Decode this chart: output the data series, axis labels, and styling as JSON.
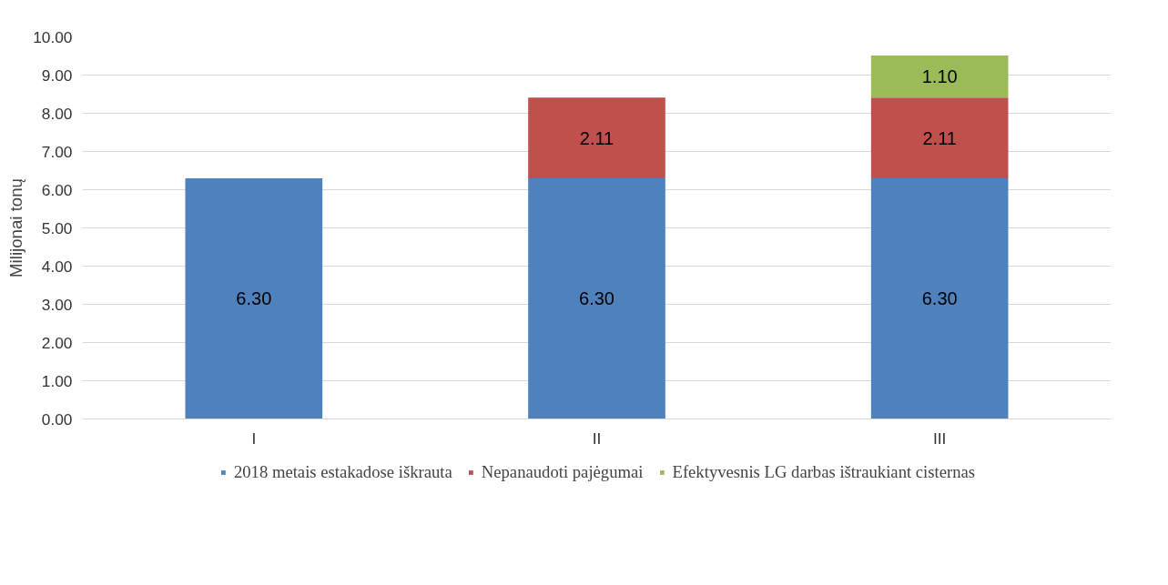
{
  "chart_data": {
    "type": "bar",
    "stacked": true,
    "ylabel": "Milijonai tonų",
    "categories": [
      "I",
      "II",
      "III"
    ],
    "series": [
      {
        "name": "2018 metais estakadose iškrauta",
        "color": "#4f81bd",
        "values": [
          6.3,
          6.3,
          6.3
        ],
        "value_labels": [
          "6.30",
          "6.30",
          "6.30"
        ]
      },
      {
        "name": "Nepanaudoti pajėgumai",
        "color": "#c0504d",
        "values": [
          null,
          2.11,
          2.11
        ],
        "value_labels": [
          null,
          "2.11",
          "2.11"
        ]
      },
      {
        "name": "Efektyvesnis LG darbas ištraukiant cisternas",
        "color": "#9bbb59",
        "values": [
          null,
          null,
          1.1
        ],
        "value_labels": [
          null,
          null,
          "1.10"
        ]
      }
    ],
    "ylim": [
      0,
      10
    ],
    "yticks": [
      {
        "value": 0,
        "label": "0.00"
      },
      {
        "value": 1,
        "label": "1.00"
      },
      {
        "value": 2,
        "label": "2.00"
      },
      {
        "value": 3,
        "label": "3.00"
      },
      {
        "value": 4,
        "label": "4.00"
      },
      {
        "value": 5,
        "label": "5.00"
      },
      {
        "value": 6,
        "label": "6.00"
      },
      {
        "value": 7,
        "label": "7.00"
      },
      {
        "value": 8,
        "label": "8.00"
      },
      {
        "value": 9,
        "label": "9.00"
      },
      {
        "value": 10,
        "label": "10.00"
      }
    ],
    "grid": "y",
    "legend": "bottom"
  }
}
